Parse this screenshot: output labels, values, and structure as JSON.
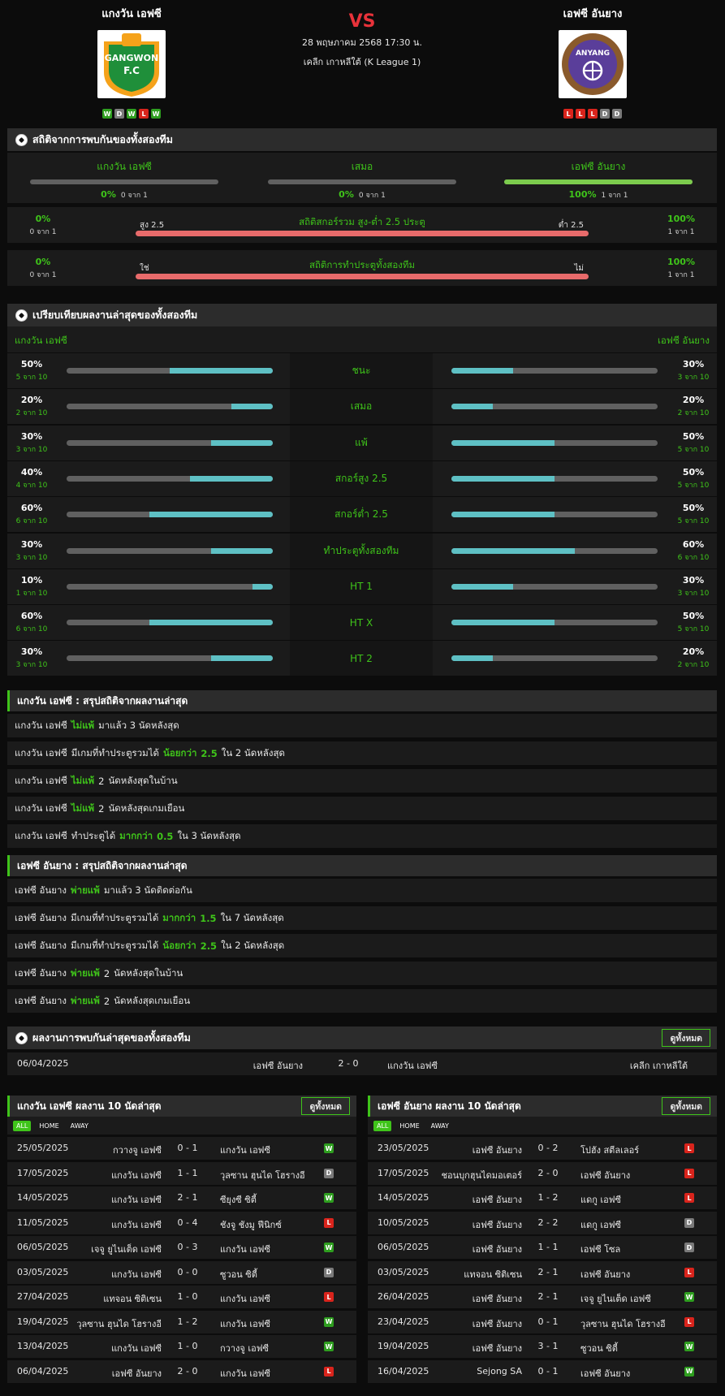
{
  "header": {
    "home": {
      "name": "แกงวัน เอฟซี",
      "logo_text": "GANGWON",
      "logo_sub": "F.C",
      "form": [
        "W",
        "D",
        "W",
        "L",
        "W"
      ]
    },
    "away": {
      "name": "เอฟซี อันยาง",
      "logo_text": "ANYANG",
      "form": [
        "L",
        "L",
        "L",
        "D",
        "D"
      ]
    },
    "vs": "VS",
    "date": "28 พฤษภาคม 2568 17:30 น.",
    "league": "เคลีก เกาหลีใต้ (K League 1)"
  },
  "h2h_stats": {
    "title": "สถิติจากการพบกันของทั้งสองทีม",
    "cols": [
      {
        "label": "แกงวัน เอฟซี",
        "pct": "0%",
        "count": "0 จาก 1",
        "fill": 0
      },
      {
        "label": "เสมอ",
        "pct": "0%",
        "count": "0 จาก 1",
        "fill": 0
      },
      {
        "label": "เอฟซี อันยาง",
        "pct": "100%",
        "count": "1 จาก 1",
        "fill": 1
      }
    ],
    "ou": {
      "title": "สถิติสกอร์รวม สูง-ต่ำ 2.5 ประตู",
      "left_label": "สูง 2.5",
      "right_label": "ต่ำ 2.5",
      "left_pct": "0%",
      "left_count": "0 จาก 1",
      "right_pct": "100%",
      "right_count": "1 จาก 1"
    },
    "btts": {
      "title": "สถิติการทำประตูทั้งสองทีม",
      "left_label": "ใช่",
      "right_label": "ไม่",
      "left_pct": "0%",
      "left_count": "0 จาก 1",
      "right_pct": "100%",
      "right_count": "1 จาก 1"
    }
  },
  "comparison": {
    "title": "เปรียบเทียบผลงานล่าสุดของทั้งสองทีม",
    "home": "แกงวัน เอฟซี",
    "away": "เอฟซี อันยาง",
    "rows": [
      {
        "label": "ชนะ",
        "l_pct": "50%",
        "l_count": "5 จาก 10",
        "l_val": 0.5,
        "r_pct": "30%",
        "r_count": "3 จาก 10",
        "r_val": 0.3
      },
      {
        "label": "เสมอ",
        "l_pct": "20%",
        "l_count": "2 จาก 10",
        "l_val": 0.2,
        "r_pct": "20%",
        "r_count": "2 จาก 10",
        "r_val": 0.2
      },
      {
        "label": "แพ้",
        "l_pct": "30%",
        "l_count": "3 จาก 10",
        "l_val": 0.3,
        "r_pct": "50%",
        "r_count": "5 จาก 10",
        "r_val": 0.5
      },
      {
        "label": "สกอร์สูง 2.5",
        "l_pct": "40%",
        "l_count": "4 จาก 10",
        "l_val": 0.4,
        "r_pct": "50%",
        "r_count": "5 จาก 10",
        "r_val": 0.5
      },
      {
        "label": "สกอร์ต่ำ 2.5",
        "l_pct": "60%",
        "l_count": "6 จาก 10",
        "l_val": 0.6,
        "r_pct": "50%",
        "r_count": "5 จาก 10",
        "r_val": 0.5
      },
      {
        "label": "ทำประตูทั้งสองทีม",
        "l_pct": "30%",
        "l_count": "3 จาก 10",
        "l_val": 0.3,
        "r_pct": "60%",
        "r_count": "6 จาก 10",
        "r_val": 0.6
      },
      {
        "label": "HT 1",
        "l_pct": "10%",
        "l_count": "1 จาก 10",
        "l_val": 0.1,
        "r_pct": "30%",
        "r_count": "3 จาก 10",
        "r_val": 0.3
      },
      {
        "label": "HT X",
        "l_pct": "60%",
        "l_count": "6 จาก 10",
        "l_val": 0.6,
        "r_pct": "50%",
        "r_count": "5 จาก 10",
        "r_val": 0.5
      },
      {
        "label": "HT 2",
        "l_pct": "30%",
        "l_count": "3 จาก 10",
        "l_val": 0.3,
        "r_pct": "20%",
        "r_count": "2 จาก 10",
        "r_val": 0.2
      }
    ]
  },
  "home_summary": {
    "title": "แกงวัน เอฟซี : สรุปสถิติจากผลงานล่าสุด",
    "rows": [
      [
        "แกงวัน เอฟซี",
        "ไม่แพ้",
        "มาแล้ว 3 นัดหลังสุด"
      ],
      [
        "แกงวัน เอฟซี",
        "มีเกมที่ทำประตูรวมได้",
        "น้อยกว่า",
        "2.5",
        "ใน 2 นัดหลังสุด"
      ],
      [
        "แกงวัน เอฟซี",
        "ไม่แพ้",
        "2",
        "นัดหลังสุดในบ้าน"
      ],
      [
        "แกงวัน เอฟซี",
        "ไม่แพ้",
        "2",
        "นัดหลังสุดเกมเยือน"
      ],
      [
        "แกงวัน เอฟซี",
        "ทำประตูได้",
        "มากกว่า",
        "0.5",
        "ใน 3 นัดหลังสุด"
      ]
    ]
  },
  "away_summary": {
    "title": "เอฟซี อันยาง : สรุปสถิติจากผลงานล่าสุด",
    "rows": [
      [
        "เอฟซี อันยาง",
        "พ่ายแพ้",
        "มาแล้ว 3 นัดติดต่อกัน"
      ],
      [
        "เอฟซี อันยาง",
        "มีเกมที่ทำประตูรวมได้",
        "มากกว่า",
        "1.5",
        "ใน 7 นัดหลังสุด"
      ],
      [
        "เอฟซี อันยาง",
        "มีเกมที่ทำประตูรวมได้",
        "น้อยกว่า",
        "2.5",
        "ใน 2 นัดหลังสุด"
      ],
      [
        "เอฟซี อันยาง",
        "พ่ายแพ้",
        "2",
        "นัดหลังสุดในบ้าน"
      ],
      [
        "เอฟซี อันยาง",
        "พ่ายแพ้",
        "2",
        "นัดหลังสุดเกมเยือน"
      ]
    ]
  },
  "last_h2h": {
    "title": "ผลงานการพบกันล่าสุดของทั้งสองทีม",
    "view_all": "ดูทั้งหมด",
    "match": {
      "date": "06/04/2025",
      "home": "เอฟซี อันยาง",
      "score": "2 - 0",
      "away": "แกงวัน เอฟซี",
      "league": "เคลีก เกาหลีใต้"
    }
  },
  "home_recent": {
    "title": "แกงวัน เอฟซี ผลงาน 10 นัดล่าสุด",
    "view_all": "ดูทั้งหมด",
    "filters": [
      "ALL",
      "HOME",
      "AWAY"
    ],
    "matches": [
      [
        "25/05/2025",
        "กวางจู เอฟซี",
        "0 - 1",
        "แกงวัน เอฟซี",
        "W"
      ],
      [
        "17/05/2025",
        "แกงวัน เอฟซี",
        "1 - 1",
        "วุลซาน ฮุนได โฮรางอี",
        "D"
      ],
      [
        "14/05/2025",
        "แกงวัน เอฟซี",
        "2 - 1",
        "ซียุงซี ซิตี้",
        "W"
      ],
      [
        "11/05/2025",
        "แกงวัน เอฟซี",
        "0 - 4",
        "ชังจู ชังมู ฟีนิกซ์",
        "L"
      ],
      [
        "06/05/2025",
        "เจจู ยูไนเต็ด เอฟซี",
        "0 - 3",
        "แกงวัน เอฟซี",
        "W"
      ],
      [
        "03/05/2025",
        "แกงวัน เอฟซี",
        "0 - 0",
        "ซูวอน ซิตี้",
        "D"
      ],
      [
        "27/04/2025",
        "แทจอน ซิติเซน",
        "1 - 0",
        "แกงวัน เอฟซี",
        "L"
      ],
      [
        "19/04/2025",
        "วุลซาน ฮุนได โฮรางอี",
        "1 - 2",
        "แกงวัน เอฟซี",
        "W"
      ],
      [
        "13/04/2025",
        "แกงวัน เอฟซี",
        "1 - 0",
        "กวางจู เอฟซี",
        "W"
      ],
      [
        "06/04/2025",
        "เอฟซี อันยาง",
        "2 - 0",
        "แกงวัน เอฟซี",
        "L"
      ]
    ]
  },
  "away_recent": {
    "title": "เอฟซี อันยาง ผลงาน 10 นัดล่าสุด",
    "view_all": "ดูทั้งหมด",
    "filters": [
      "ALL",
      "HOME",
      "AWAY"
    ],
    "matches": [
      [
        "23/05/2025",
        "เอฟซี อันยาง",
        "0 - 2",
        "โปฮัง สตีลเลอร์",
        "L"
      ],
      [
        "17/05/2025",
        "ชอนบุกฮุนไดมอเตอร์",
        "2 - 0",
        "เอฟซี อันยาง",
        "L"
      ],
      [
        "14/05/2025",
        "เอฟซี อันยาง",
        "1 - 2",
        "แดกู เอฟซี",
        "L"
      ],
      [
        "10/05/2025",
        "เอฟซี อันยาง",
        "2 - 2",
        "แดกู เอฟซี",
        "D"
      ],
      [
        "06/05/2025",
        "เอฟซี อันยาง",
        "1 - 1",
        "เอฟซี โซล",
        "D"
      ],
      [
        "03/05/2025",
        "แทจอน ซิติเซน",
        "2 - 1",
        "เอฟซี อันยาง",
        "L"
      ],
      [
        "26/04/2025",
        "เอฟซี อันยาง",
        "2 - 1",
        "เจจู ยูไนเต็ด เอฟซี",
        "W"
      ],
      [
        "23/04/2025",
        "เอฟซี อันยาง",
        "0 - 1",
        "วุลซาน ฮุนได โฮรางอี",
        "L"
      ],
      [
        "19/04/2025",
        "เอฟซี อันยาง",
        "3 - 1",
        "ซูวอน ซิตี้",
        "W"
      ],
      [
        "16/04/2025",
        "Sejong SA",
        "0 - 1",
        "เอฟซี อันยาง",
        "W"
      ]
    ]
  }
}
